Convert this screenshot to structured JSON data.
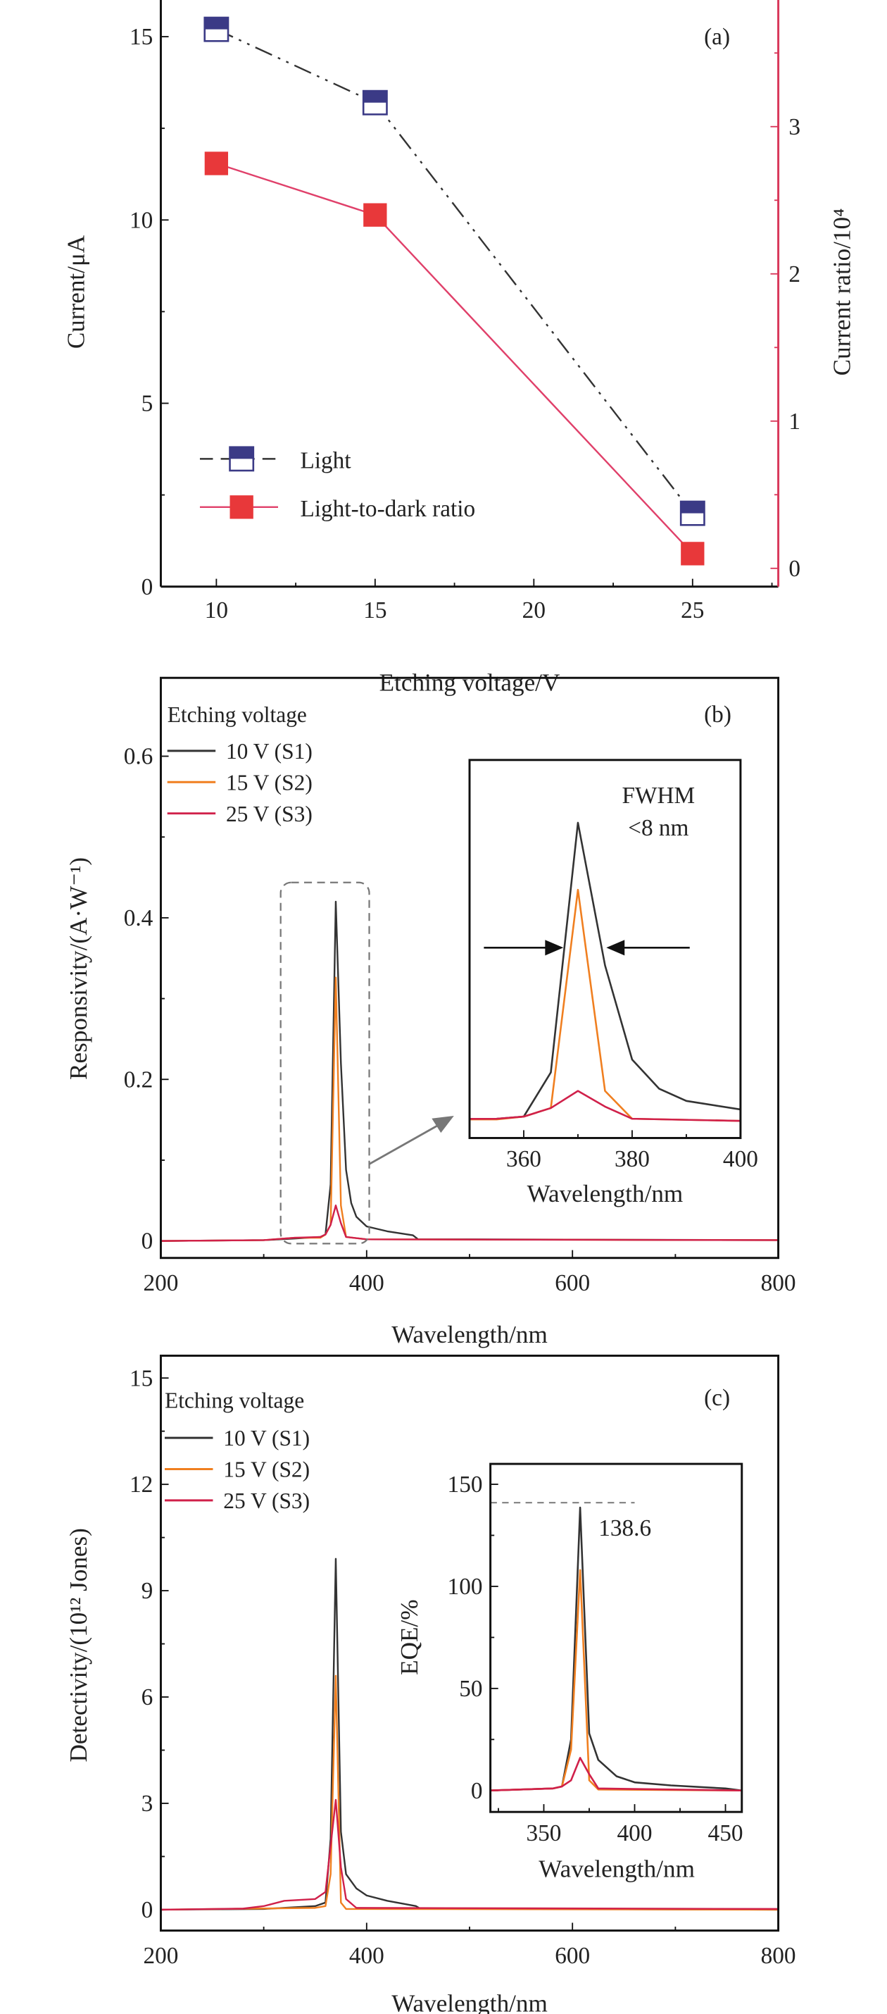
{
  "chart_data": [
    {
      "type": "line",
      "panel_label": "(a)",
      "xlabel": "Etching voltage/V",
      "ylabel": "Current/μA",
      "ylabel_color": "#3b3a86",
      "y2label": "Current ratio/10⁴",
      "y2label_color": "#e0383a",
      "x_ticks": [
        10,
        15,
        20,
        25
      ],
      "xlim": [
        8.25,
        27.7
      ],
      "y_ticks": [
        0,
        5,
        10,
        15
      ],
      "ylim": [
        0,
        16
      ],
      "y2_ticks": [
        0,
        1,
        2,
        3
      ],
      "y2lim": [
        -0.124,
        3.86
      ],
      "y2_axis_color": "#d9385a",
      "legend_position": "bottom-left",
      "series": [
        {
          "name": "Light",
          "axis": "left",
          "x": [
            10,
            15,
            25
          ],
          "y": [
            15.2,
            13.2,
            2.0
          ],
          "line_color": "#333333",
          "line_style": "dash-dot-dot",
          "marker": "half-filled-square",
          "marker_color": "#3b3a86"
        },
        {
          "name": "Light-to-dark ratio",
          "axis": "right",
          "x": [
            10,
            15,
            25
          ],
          "y": [
            2.75,
            2.4,
            0.1
          ],
          "line_color": "#e0406a",
          "line_style": "solid",
          "marker": "filled-square",
          "marker_color": "#e8383a"
        }
      ]
    },
    {
      "type": "line",
      "panel_label": "(b)",
      "xlabel": "Wavelength/nm",
      "ylabel": "Responsivity/(A·W⁻¹)",
      "x_ticks": [
        200,
        400,
        600,
        800
      ],
      "xlim": [
        200,
        800
      ],
      "y_ticks": [
        0,
        0.2,
        0.4,
        0.6
      ],
      "ylim": [
        -0.021,
        0.697
      ],
      "legend_title": "Etching voltage",
      "legend_position": "top-left",
      "series": [
        {
          "name": "10 V (S1)",
          "color": "#333333",
          "points": [
            [
              200,
              0
            ],
            [
              300,
              0.001
            ],
            [
              330,
              0.003
            ],
            [
              355,
              0.005
            ],
            [
              360,
              0.008
            ],
            [
              365,
              0.07
            ],
            [
              370,
              0.42
            ],
            [
              375,
              0.22
            ],
            [
              380,
              0.088
            ],
            [
              385,
              0.047
            ],
            [
              390,
              0.03
            ],
            [
              400,
              0.018
            ],
            [
              420,
              0.012
            ],
            [
              445,
              0.007
            ],
            [
              450,
              0.002
            ],
            [
              500,
              0.002
            ],
            [
              800,
              0.001
            ]
          ]
        },
        {
          "name": "15 V (S2)",
          "color": "#f07f20",
          "points": [
            [
              200,
              0
            ],
            [
              300,
              0.001
            ],
            [
              330,
              0.004
            ],
            [
              355,
              0.004
            ],
            [
              360,
              0.008
            ],
            [
              365,
              0.02
            ],
            [
              370,
              0.326
            ],
            [
              375,
              0.044
            ],
            [
              380,
              0.005
            ],
            [
              400,
              0.002
            ],
            [
              800,
              0.001
            ]
          ]
        },
        {
          "name": "25 V (S3)",
          "color": "#d0204a",
          "points": [
            [
              200,
              0
            ],
            [
              300,
              0.001
            ],
            [
              330,
              0.004
            ],
            [
              355,
              0.005
            ],
            [
              360,
              0.008
            ],
            [
              365,
              0.02
            ],
            [
              370,
              0.044
            ],
            [
              375,
              0.022
            ],
            [
              380,
              0.005
            ],
            [
              400,
              0.002
            ],
            [
              800,
              0.001
            ]
          ]
        }
      ],
      "inset": {
        "xlabel": "Wavelength/nm",
        "x_ticks": [
          360,
          380,
          400
        ],
        "xlim": [
          350,
          400
        ],
        "ylim": [
          -0.022,
          0.508
        ],
        "annotation": [
          "FWHM",
          "<8 nm"
        ]
      }
    },
    {
      "type": "line",
      "panel_label": "(c)",
      "xlabel": "Wavelength/nm",
      "ylabel": "Detectivity/(10¹² Jones)",
      "x_ticks": [
        200,
        400,
        600,
        800
      ],
      "xlim": [
        200,
        800
      ],
      "y_ticks": [
        0,
        3,
        6,
        9,
        12,
        15
      ],
      "ylim": [
        -0.59,
        15.63
      ],
      "legend_title": "Etching voltage",
      "legend_position": "top-left",
      "series": [
        {
          "name": "10 V (S1)",
          "color": "#333333",
          "points": [
            [
              200,
              0
            ],
            [
              300,
              0.02
            ],
            [
              350,
              0.1
            ],
            [
              360,
              0.2
            ],
            [
              365,
              2
            ],
            [
              370,
              9.9
            ],
            [
              375,
              2.2
            ],
            [
              380,
              1.0
            ],
            [
              390,
              0.6
            ],
            [
              400,
              0.4
            ],
            [
              420,
              0.25
            ],
            [
              448,
              0.1
            ],
            [
              452,
              0.03
            ],
            [
              800,
              0
            ]
          ]
        },
        {
          "name": "15 V (S2)",
          "color": "#f07f20",
          "points": [
            [
              200,
              0
            ],
            [
              350,
              0.05
            ],
            [
              360,
              0.1
            ],
            [
              365,
              1
            ],
            [
              370,
              6.6
            ],
            [
              375,
              0.2
            ],
            [
              380,
              0.02
            ],
            [
              800,
              0
            ]
          ]
        },
        {
          "name": "25 V (S3)",
          "color": "#d0204a",
          "points": [
            [
              200,
              0
            ],
            [
              280,
              0.03
            ],
            [
              300,
              0.1
            ],
            [
              320,
              0.25
            ],
            [
              350,
              0.3
            ],
            [
              360,
              0.5
            ],
            [
              370,
              3.1
            ],
            [
              375,
              1.2
            ],
            [
              380,
              0.3
            ],
            [
              390,
              0.05
            ],
            [
              800,
              0.02
            ]
          ]
        }
      ],
      "inset": {
        "xlabel": "Wavelength/nm",
        "ylabel": "EQE/%",
        "x_ticks": [
          350,
          400,
          450
        ],
        "xlim": [
          320.6,
          459
        ],
        "y_ticks": [
          0,
          50,
          100,
          150
        ],
        "ylim": [
          -10.5,
          160
        ],
        "peak_label": "138.6",
        "series": [
          {
            "name": "10 V (S1)",
            "color": "#333333",
            "points": [
              [
                320,
                0
              ],
              [
                355,
                1
              ],
              [
                360,
                2
              ],
              [
                365,
                25
              ],
              [
                370,
                138.6
              ],
              [
                375,
                28
              ],
              [
                380,
                15
              ],
              [
                390,
                7
              ],
              [
                400,
                4
              ],
              [
                420,
                2.5
              ],
              [
                450,
                1
              ],
              [
                459,
                0
              ]
            ]
          },
          {
            "name": "15 V (S2)",
            "color": "#f07f20",
            "points": [
              [
                320,
                0
              ],
              [
                355,
                1
              ],
              [
                360,
                2
              ],
              [
                365,
                20
              ],
              [
                370,
                108
              ],
              [
                375,
                5
              ],
              [
                380,
                0.5
              ],
              [
                459,
                0
              ]
            ]
          },
          {
            "name": "25 V (S3)",
            "color": "#d0204a",
            "points": [
              [
                320,
                0
              ],
              [
                355,
                1
              ],
              [
                360,
                2
              ],
              [
                365,
                5
              ],
              [
                370,
                16
              ],
              [
                375,
                8
              ],
              [
                380,
                1
              ],
              [
                459,
                0
              ]
            ]
          }
        ]
      }
    }
  ]
}
